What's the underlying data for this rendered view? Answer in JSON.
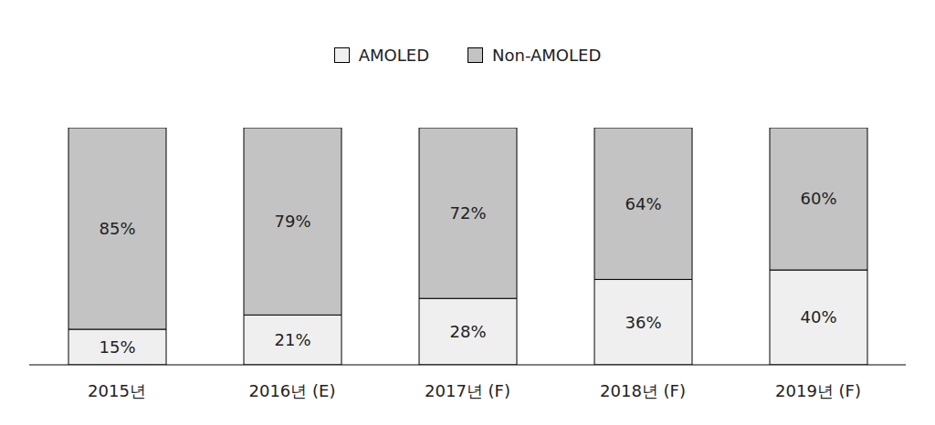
{
  "chart_data": {
    "type": "bar",
    "categories": [
      "2015년",
      "2016년 (E)",
      "2017년 (F)",
      "2018년 (F)",
      "2019년 (F)"
    ],
    "series": [
      {
        "name": "AMOLED",
        "color": "#efefef",
        "values": [
          15,
          21,
          28,
          36,
          40
        ],
        "value_labels": [
          "15%",
          "21%",
          "28%",
          "36%",
          "40%"
        ]
      },
      {
        "name": "Non-AMOLED",
        "color": "#c3c3c3",
        "values": [
          85,
          79,
          72,
          64,
          60
        ],
        "value_labels": [
          "85%",
          "79%",
          "72%",
          "64%",
          "60%"
        ]
      }
    ],
    "ylim": [
      0,
      100
    ],
    "stacked": true,
    "data_labels": true,
    "legend": "top",
    "tick_labels": "x",
    "grid": false
  }
}
